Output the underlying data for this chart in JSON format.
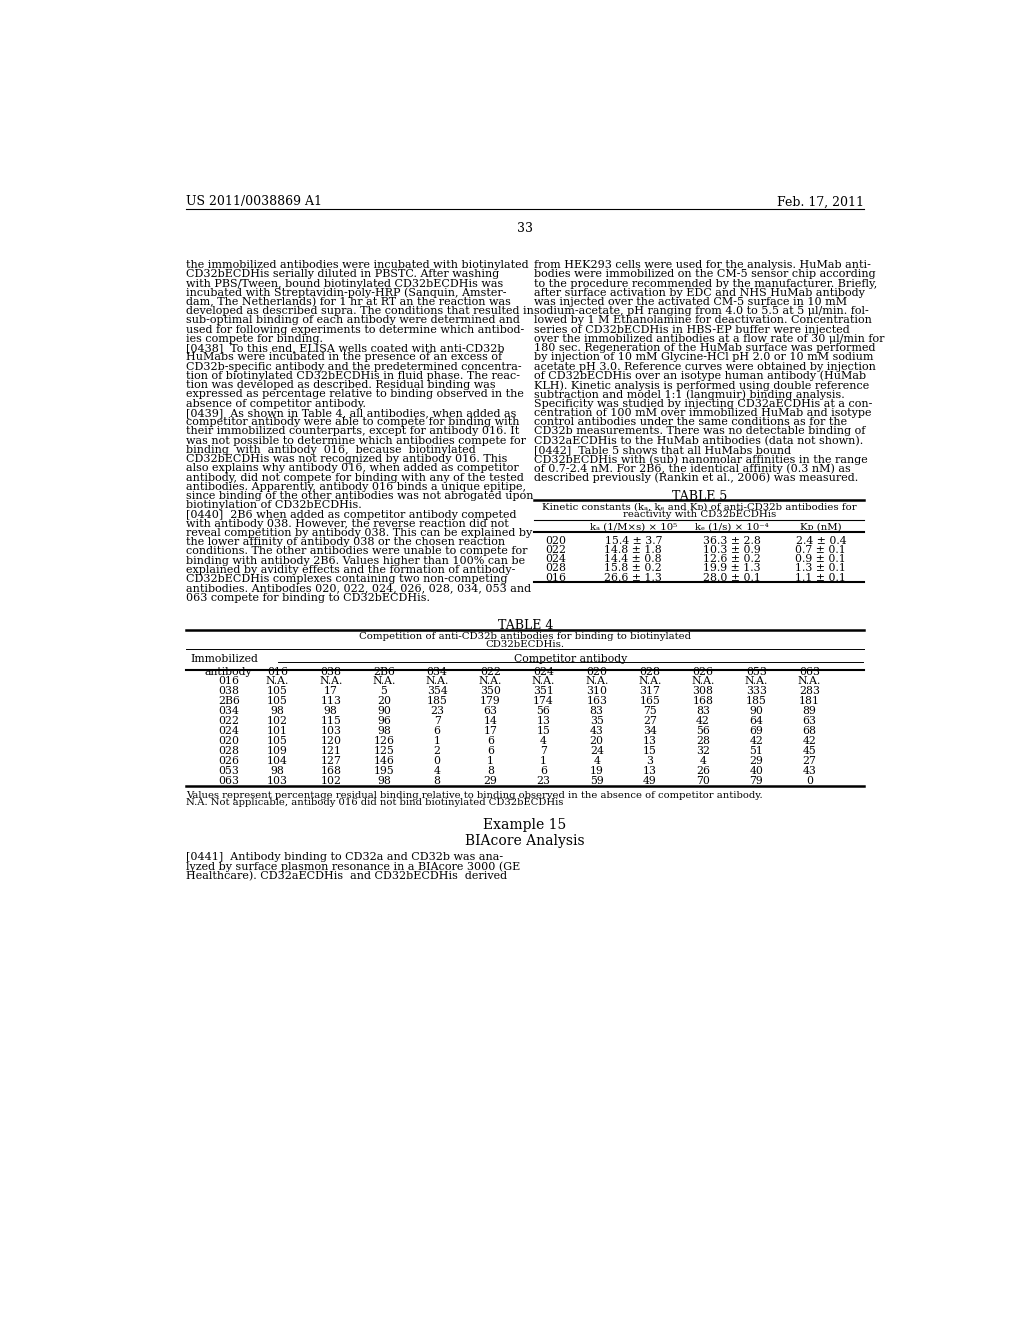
{
  "header_left": "US 2011/0038869 A1",
  "header_right": "Feb. 17, 2011",
  "page_number": "33",
  "background_color": "#ffffff",
  "text_color": "#000000",
  "left_col_lines": [
    "the immobilized antibodies were incubated with biotinylated",
    "CD32bECDHis serially diluted in PBSTC. After washing",
    "with PBS/Tween, bound biotinylated CD32bECDHis was",
    "incubated with Streptavidin-poly-HRP (Sanquin, Amster-",
    "dam, The Netherlands) for 1 hr at RT an the reaction was",
    "developed as described supra. The conditions that resulted in",
    "sub-optimal binding of each antibody were determined and",
    "used for following experiments to determine which antibod-",
    "ies compete for binding.",
    "[0438]  To this end, ELISA wells coated with anti-CD32b",
    "HuMabs were incubated in the presence of an excess of",
    "CD32b-specific antibody and the predetermined concentra-",
    "tion of biotinylated CD32bECDHis in fluid phase. The reac-",
    "tion was developed as described. Residual binding was",
    "expressed as percentage relative to binding observed in the",
    "absence of competitor antibody.",
    "[0439]  As shown in Table 4, all antibodies, when added as",
    "competitor antibody were able to compete for binding with",
    "their immobilized counterparts, except for antibody 016. It",
    "was not possible to determine which antibodies compete for",
    "binding  with  antibody  016,  because  biotinylated",
    "CD32bECDHis was not recognized by antibody 016. This",
    "also explains why antibody 016, when added as competitor",
    "antibody, did not compete for binding with any of the tested",
    "antibodies. Apparently, antibody 016 binds a unique epitipe,",
    "since binding of the other antibodies was not abrogated upon",
    "biotinylation of CD32bECDHis.",
    "[0440]  2B6 when added as competitor antibody competed",
    "with antibody 038. However, the reverse reaction did not",
    "reveal competition by antibody 038. This can be explained by",
    "the lower affinity of antibody 038 or the chosen reaction",
    "conditions. The other antibodies were unable to compete for",
    "binding with antibody 2B6. Values higher than 100% can be",
    "explained by avidity effects and the formation of antibody-",
    "CD32bECDHis complexes containing two non-competing",
    "antibodies. Antibodies 020, 022, 024, 026, 028, 034, 053 and",
    "063 compete for binding to CD32bECDHis."
  ],
  "right_col_lines": [
    "from HEK293 cells were used for the analysis. HuMab anti-",
    "bodies were immobilized on the CM-5 sensor chip according",
    "to the procedure recommended by the manufacturer. Briefly,",
    "after surface activation by EDC and NHS HuMab antibody",
    "was injected over the activated CM-5 surface in 10 mM",
    "sodium-acetate, pH ranging from 4.0 to 5.5 at 5 μl/min. fol-",
    "lowed by 1 M Ethanolamine for deactivation. Concentration",
    "series of CD32bECDHis in HBS-EP buffer were injected",
    "over the immobilized antibodies at a flow rate of 30 μl/min for",
    "180 sec. Regeneration of the HuMab surface was performed",
    "by injection of 10 mM Glycine-HCl pH 2.0 or 10 mM sodium",
    "acetate pH 3.0. Reference curves were obtained by injection",
    "of CD32bECDHis over an isotype human antibody (HuMab",
    "KLH). Kinetic analysis is performed using double reference",
    "subtraction and model 1:1 (langmuir) binding analysis.",
    "Specificity was studied by injecting CD32aECDHis at a con-",
    "centration of 100 mM over immobilized HuMab and isotype",
    "control antibodies under the same conditions as for the",
    "CD32b measurements. There was no detectable binding of",
    "CD32aECDHis to the HuMab antibodies (data not shown).",
    "[0442]  Table 5 shows that all HuMabs bound",
    "CD32bECDHis with (sub) nanomolar affinities in the range",
    "of 0.7-2.4 nM. For 2B6, the identical affinity (0.3 nM) as",
    "described previously (Rankin et al., 2006) was measured."
  ],
  "table4_title": "TABLE 4",
  "table4_sub1": "Competition of anti-CD32b antibodies for binding to biotinylated",
  "table4_sub2": "CD32bECDHis.",
  "table4_header1": "Immobilized",
  "table4_header2": "Competitor antibody",
  "table4_cols": [
    "antibody",
    "016",
    "038",
    "2B6",
    "034",
    "022",
    "024",
    "020",
    "028",
    "026",
    "053",
    "063"
  ],
  "table4_data": [
    [
      "016",
      "N.A.",
      "N.A.",
      "N.A.",
      "N.A.",
      "N.A.",
      "N.A.",
      "N.A.",
      "N.A.",
      "N.A.",
      "N.A.",
      "N.A."
    ],
    [
      "038",
      "105",
      "17",
      "5",
      "354",
      "350",
      "351",
      "310",
      "317",
      "308",
      "333",
      "283"
    ],
    [
      "2B6",
      "105",
      "113",
      "20",
      "185",
      "179",
      "174",
      "163",
      "165",
      "168",
      "185",
      "181"
    ],
    [
      "034",
      "98",
      "98",
      "90",
      "23",
      "63",
      "56",
      "83",
      "75",
      "83",
      "90",
      "89"
    ],
    [
      "022",
      "102",
      "115",
      "96",
      "7",
      "14",
      "13",
      "35",
      "27",
      "42",
      "64",
      "63"
    ],
    [
      "024",
      "101",
      "103",
      "98",
      "6",
      "17",
      "15",
      "43",
      "34",
      "56",
      "69",
      "68"
    ],
    [
      "020",
      "105",
      "120",
      "126",
      "1",
      "6",
      "4",
      "20",
      "13",
      "28",
      "42",
      "42"
    ],
    [
      "028",
      "109",
      "121",
      "125",
      "2",
      "6",
      "7",
      "24",
      "15",
      "32",
      "51",
      "45"
    ],
    [
      "026",
      "104",
      "127",
      "146",
      "0",
      "1",
      "1",
      "4",
      "3",
      "4",
      "29",
      "27"
    ],
    [
      "053",
      "98",
      "168",
      "195",
      "4",
      "8",
      "6",
      "19",
      "13",
      "26",
      "40",
      "43"
    ],
    [
      "063",
      "103",
      "102",
      "98",
      "8",
      "29",
      "23",
      "59",
      "49",
      "70",
      "79",
      "0"
    ]
  ],
  "table4_footnote1": "Values represent percentage residual binding relative to binding observed in the absence of competitor antibody.",
  "table4_footnote2": "N.A. Not applicable, antibody 016 did not bind biotinylated CD32bECDHis",
  "table5_title": "TABLE 5",
  "table5_sub1": "Kinetic constants (kₐ, kₑ and Kᴅ) of anti-CD32b antibodies for",
  "table5_sub2": "reactivity with CD32bECDHis",
  "table5_hdr": [
    "",
    "kₐ (1/M×s) × 10⁵",
    "kₑ (1/s) × 10⁻⁴",
    "Kᴅ (nM)"
  ],
  "table5_data": [
    [
      "020",
      "15.4 ± 3.7",
      "36.3 ± 2.8",
      "2.4 ± 0.4"
    ],
    [
      "022",
      "14.8 ± 1.8",
      "10.3 ± 0.9",
      "0.7 ± 0.1"
    ],
    [
      "024",
      "14.4 ± 0.8",
      "12.6 ± 0.2",
      "0.9 ± 0.1"
    ],
    [
      "028",
      "15.8 ± 0.2",
      "19.9 ± 1.3",
      "1.3 ± 0.1"
    ],
    [
      "016",
      "26.6 ± 1.3",
      "28.0 ± 0.1",
      "1.1 ± 0.1"
    ]
  ],
  "example_header": "Example 15",
  "example_subheader": "BIAcore Analysis",
  "example_lines": [
    "[0441]  Antibody binding to CD32a and CD32b was ana-",
    "lyzed by surface plasmon resonance in a BIAcore 3000 (GE",
    "Healthcare). CD32aECDHis  and CD32bECDHis  derived"
  ]
}
